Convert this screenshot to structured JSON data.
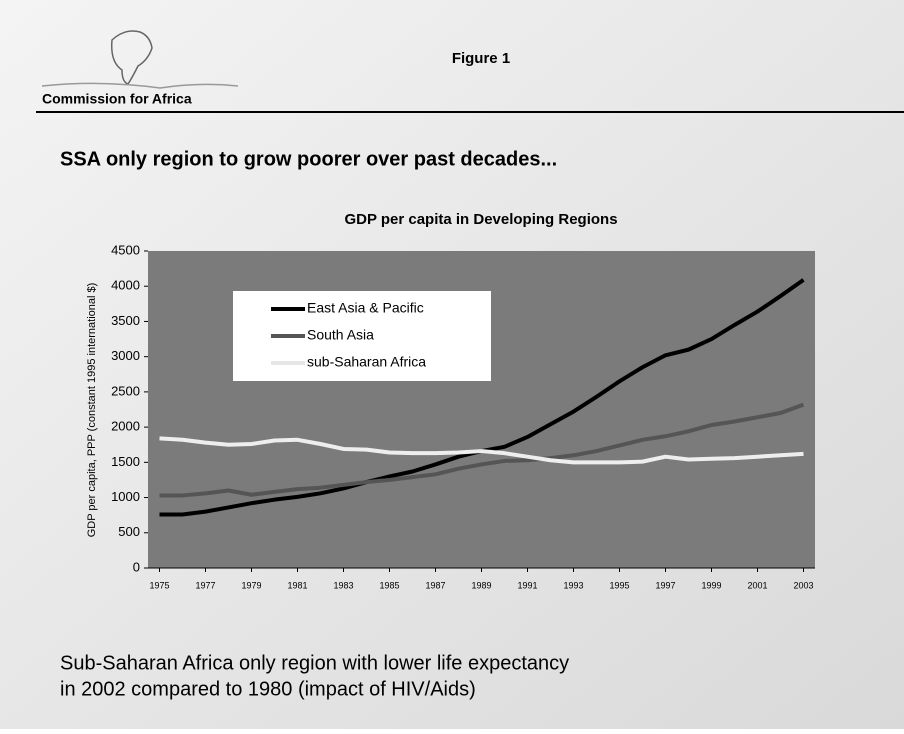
{
  "header": {
    "logo_text": "Commission for Africa",
    "figure": "Figure 1"
  },
  "headline": "SSA only region to grow poorer over past decades...",
  "chart_data": {
    "type": "line",
    "title": "GDP per capita in Developing Regions",
    "y_label": "GDP per capita, PPP (constant 1995 international $)",
    "x": [
      1975,
      1976,
      1977,
      1978,
      1979,
      1980,
      1981,
      1982,
      1983,
      1984,
      1985,
      1986,
      1987,
      1988,
      1989,
      1990,
      1991,
      1992,
      1993,
      1994,
      1995,
      1996,
      1997,
      1998,
      1999,
      2000,
      2001,
      2002,
      2003
    ],
    "series": [
      {
        "name": "East Asia & Pacific",
        "color": "#000000",
        "values": [
          760,
          760,
          800,
          860,
          920,
          970,
          1010,
          1060,
          1130,
          1220,
          1300,
          1370,
          1470,
          1580,
          1660,
          1720,
          1860,
          2040,
          2220,
          2430,
          2650,
          2850,
          3020,
          3100,
          3250,
          3450,
          3640,
          3860,
          4090
        ]
      },
      {
        "name": "South Asia",
        "color": "#555555",
        "values": [
          1030,
          1030,
          1060,
          1100,
          1040,
          1080,
          1120,
          1140,
          1180,
          1220,
          1250,
          1290,
          1330,
          1410,
          1470,
          1520,
          1530,
          1560,
          1600,
          1660,
          1740,
          1820,
          1870,
          1940,
          2030,
          2080,
          2140,
          2200,
          2320
        ]
      },
      {
        "name": "sub-Saharan Africa",
        "color": "#eeeeee",
        "values": [
          1840,
          1820,
          1780,
          1750,
          1760,
          1810,
          1820,
          1760,
          1690,
          1680,
          1640,
          1630,
          1630,
          1640,
          1660,
          1630,
          1580,
          1530,
          1500,
          1500,
          1500,
          1510,
          1580,
          1540,
          1550,
          1560,
          1580,
          1600,
          1620
        ]
      }
    ],
    "xlim": [
      1974.5,
      2003.5
    ],
    "xticks": [
      1975,
      1977,
      1979,
      1981,
      1983,
      1985,
      1987,
      1989,
      1991,
      1993,
      1995,
      1997,
      1999,
      2001,
      2003
    ],
    "ylim": [
      0,
      4500
    ],
    "yticks": [
      0,
      500,
      1000,
      1500,
      2000,
      2500,
      3000,
      3500,
      4000,
      4500
    ],
    "grid": false,
    "legend": "upper left",
    "plot_color": "#7b7b7b"
  },
  "footer": {
    "lines": [
      "Sub-Saharan Africa only region with lower life expectancy",
      "in 2002 compared to 1980 (impact of HIV/Aids)"
    ]
  }
}
